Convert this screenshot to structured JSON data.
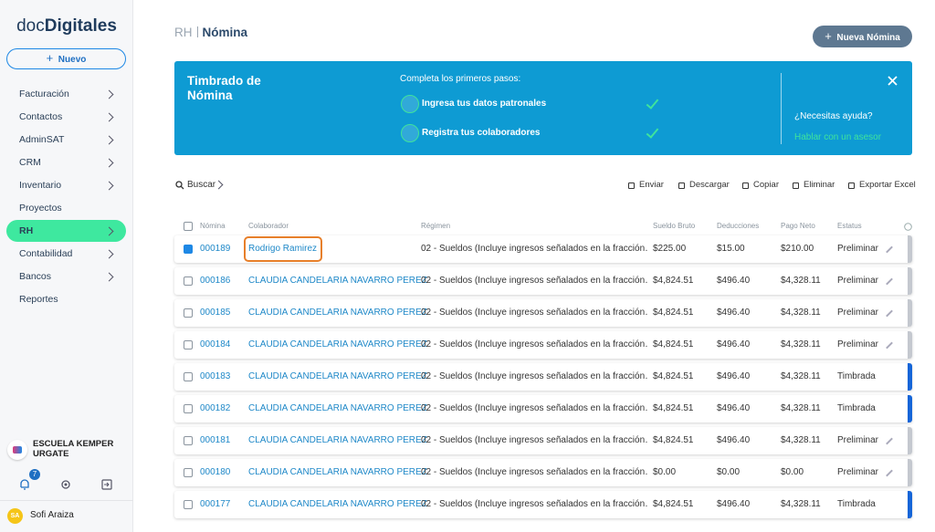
{
  "sidebar": {
    "logo": {
      "light": "doc",
      "bold": "Digitales"
    },
    "new_button": "Nuevo",
    "nav": [
      {
        "label": "Facturación",
        "arrow": true
      },
      {
        "label": "Contactos",
        "arrow": true
      },
      {
        "label": "AdminSAT",
        "arrow": true
      },
      {
        "label": "CRM",
        "arrow": true
      },
      {
        "label": "Inventario",
        "arrow": true
      },
      {
        "label": "Proyectos",
        "arrow": false
      },
      {
        "label": "RH",
        "arrow": true,
        "active": true
      },
      {
        "label": "Contabilidad",
        "arrow": true
      },
      {
        "label": "Bancos",
        "arrow": true
      },
      {
        "label": "Reportes",
        "arrow": false
      }
    ],
    "organization": "ESCUELA KEMPER URGATE",
    "notifications": 7,
    "user": {
      "initials": "SA",
      "name": "Sofi Araiza"
    }
  },
  "header": {
    "section": "RH",
    "page": "Nómina",
    "button": "Nueva Nómina"
  },
  "banner": {
    "title": "Timbrado de Nómina",
    "subtitle": "Completa los primeros pasos:",
    "steps": [
      "Ingresa tus datos patronales",
      "Registra tus colaboradores"
    ],
    "help": "¿Necesitas ayuda?",
    "link": "Hablar con un asesor"
  },
  "toolbar": {
    "search": "Buscar",
    "actions": [
      "Enviar",
      "Descargar",
      "Copiar",
      "Eliminar",
      "Exportar Excel"
    ]
  },
  "table": {
    "columns": [
      "Nómina",
      "Colaborador",
      "Régimen",
      "Sueldo Bruto",
      "Deducciones",
      "Pago Neto",
      "Estatus"
    ],
    "rows": [
      [
        "000189",
        "Rodrigo Ramirez",
        "02 - Sueldos (Incluye ingresos señalados en la fracción…",
        "$225.00",
        "$15.00",
        "$210.00",
        "Preliminar"
      ],
      [
        "000186",
        "CLAUDIA CANDELARIA NAVARRO PEREZ",
        "02 - Sueldos (Incluye ingresos señalados en la fracción…",
        "$4,824.51",
        "$496.40",
        "$4,328.11",
        "Preliminar"
      ],
      [
        "000185",
        "CLAUDIA CANDELARIA NAVARRO PEREZ",
        "02 - Sueldos (Incluye ingresos señalados en la fracción…",
        "$4,824.51",
        "$496.40",
        "$4,328.11",
        "Preliminar"
      ],
      [
        "000184",
        "CLAUDIA CANDELARIA NAVARRO PEREZ",
        "02 - Sueldos (Incluye ingresos señalados en la fracción…",
        "$4,824.51",
        "$496.40",
        "$4,328.11",
        "Preliminar"
      ],
      [
        "000183",
        "CLAUDIA CANDELARIA NAVARRO PEREZ",
        "02 - Sueldos (Incluye ingresos señalados en la fracción…",
        "$4,824.51",
        "$496.40",
        "$4,328.11",
        "Timbrada"
      ],
      [
        "000182",
        "CLAUDIA CANDELARIA NAVARRO PEREZ",
        "02 - Sueldos (Incluye ingresos señalados en la fracción…",
        "$4,824.51",
        "$496.40",
        "$4,328.11",
        "Timbrada"
      ],
      [
        "000181",
        "CLAUDIA CANDELARIA NAVARRO PEREZ",
        "02 - Sueldos (Incluye ingresos señalados en la fracción…",
        "$4,824.51",
        "$496.40",
        "$4,328.11",
        "Preliminar"
      ],
      [
        "000180",
        "CLAUDIA CANDELARIA NAVARRO PEREZ",
        "02 - Sueldos (Incluye ingresos señalados en la fracción…",
        "$0.00",
        "$0.00",
        "$0.00",
        "Preliminar"
      ],
      [
        "000177",
        "CLAUDIA CANDELARIA NAVARRO PEREZ",
        "02 - Sueldos (Incluye ingresos señalados en la fracción…",
        "$4,824.51",
        "$496.40",
        "$4,328.11",
        "Timbrada"
      ]
    ],
    "checked": [
      true,
      false,
      false,
      false,
      false,
      false,
      false,
      false,
      false
    ]
  }
}
